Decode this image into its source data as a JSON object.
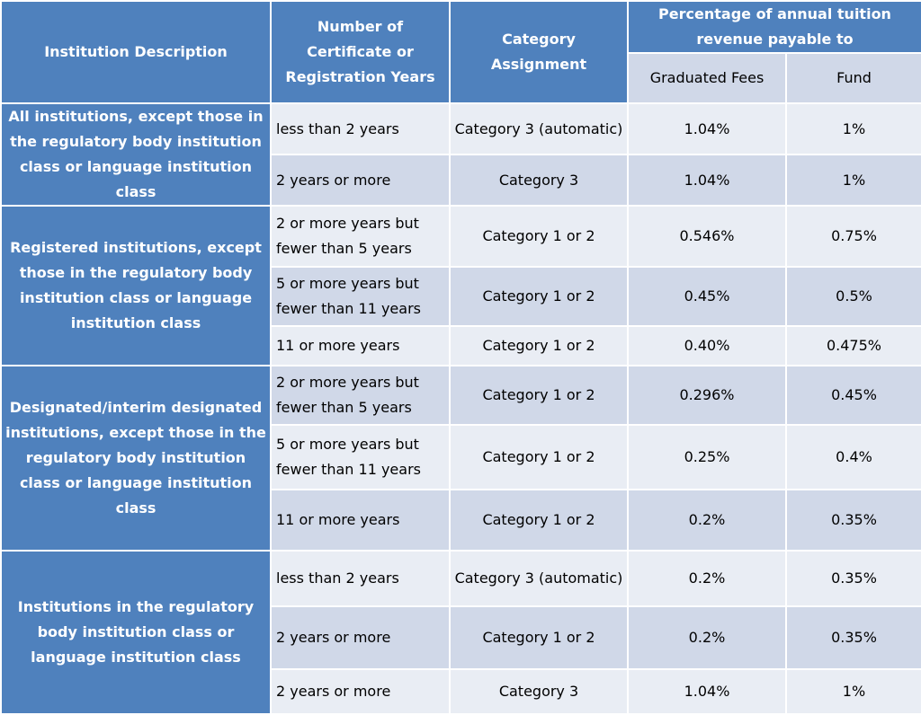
{
  "table": {
    "headers": {
      "institution": "Institution Description",
      "years": "Number of Certificate or Registration Years",
      "category": "Category Assignment",
      "percentage": "Percentage of annual tuition revenue payable to",
      "graduated_fees": "Graduated Fees",
      "fund": "Fund"
    },
    "groups": [
      {
        "description": "All institutions, except those in the regulatory body institution class or language institution class",
        "rows": [
          {
            "years": "less than 2 years",
            "category": "Category 3 (automatic)",
            "graduated_fees": "1.04%",
            "fund": "1%"
          },
          {
            "years": "2 years or more",
            "category": "Category 3",
            "graduated_fees": "1.04%",
            "fund": "1%"
          }
        ]
      },
      {
        "description": "Registered institutions, except those in the regulatory body institution class or language institution class",
        "rows": [
          {
            "years": "2 or more years but fewer than 5 years",
            "category": "Category 1 or 2",
            "graduated_fees": "0.546%",
            "fund": "0.75%"
          },
          {
            "years": "5 or more years but fewer than 11 years",
            "category": "Category 1 or 2",
            "graduated_fees": "0.45%",
            "fund": "0.5%"
          },
          {
            "years": "11 or more years",
            "category": "Category 1 or 2",
            "graduated_fees": "0.40%",
            "fund": "0.475%"
          }
        ]
      },
      {
        "description": "Designated/interim designated institutions, except those in the regulatory body institution class or language institution class",
        "rows": [
          {
            "years": "2 or more years but fewer than 5 years",
            "category": "Category 1 or 2",
            "graduated_fees": "0.296%",
            "fund": "0.45%"
          },
          {
            "years": "5 or more years but fewer than 11 years",
            "category": "Category 1 or 2",
            "graduated_fees": "0.25%",
            "fund": "0.4%"
          },
          {
            "years": "11 or more years",
            "category": "Category 1 or 2",
            "graduated_fees": "0.2%",
            "fund": "0.35%"
          }
        ]
      },
      {
        "description": "Institutions in the regulatory body institution class or language institution class",
        "rows": [
          {
            "years": "less than 2 years",
            "category": "Category 3 (automatic)",
            "graduated_fees": "0.2%",
            "fund": "0.35%"
          },
          {
            "years": "2 years or more",
            "category": "Category 1 or 2",
            "graduated_fees": "0.2%",
            "fund": "0.35%"
          },
          {
            "years": "2 years or more",
            "category": "Category 3",
            "graduated_fees": "1.04%",
            "fund": "1%"
          }
        ]
      }
    ]
  }
}
